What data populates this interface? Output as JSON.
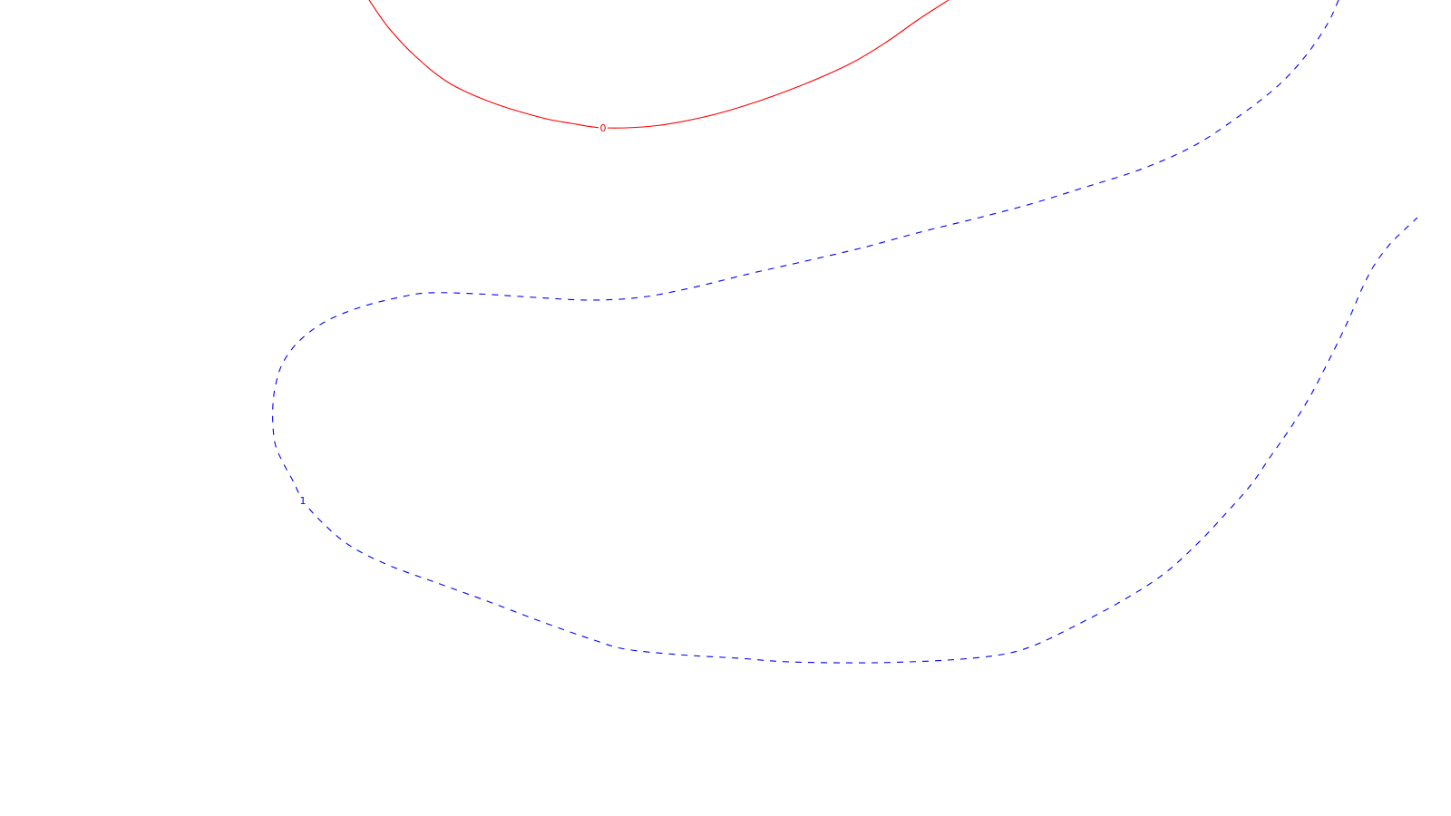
{
  "chart_data": {
    "type": "contour",
    "title": "",
    "xlabel": "",
    "ylabel": "",
    "grid": false,
    "legend": "none",
    "background": "#ffffff",
    "contours": [
      {
        "level_label": "0",
        "color": "#ff0000",
        "style": "solid",
        "closed": false,
        "label_at_point": 7,
        "points": [
          [
            407,
            0
          ],
          [
            428,
            30
          ],
          [
            458,
            62
          ],
          [
            496,
            92
          ],
          [
            545,
            114
          ],
          [
            598,
            130
          ],
          [
            630,
            136
          ],
          [
            665,
            141
          ],
          [
            720,
            139
          ],
          [
            772,
            130
          ],
          [
            823,
            116
          ],
          [
            884,
            94
          ],
          [
            938,
            70
          ],
          [
            978,
            46
          ],
          [
            1012,
            22
          ],
          [
            1046,
            0
          ]
        ]
      },
      {
        "level_label": "1",
        "color": "#0000ff",
        "style": "dashed",
        "closed": false,
        "label_at_point": 31,
        "points": [
          [
            1476,
            0
          ],
          [
            1464,
            26
          ],
          [
            1441,
            60
          ],
          [
            1412,
            92
          ],
          [
            1372,
            124
          ],
          [
            1318,
            160
          ],
          [
            1260,
            186
          ],
          [
            1198,
            206
          ],
          [
            1140,
            224
          ],
          [
            1080,
            240
          ],
          [
            1015,
            256
          ],
          [
            948,
            274
          ],
          [
            888,
            288
          ],
          [
            826,
            302
          ],
          [
            760,
            318
          ],
          [
            706,
            328
          ],
          [
            650,
            331
          ],
          [
            590,
            328
          ],
          [
            525,
            324
          ],
          [
            472,
            323
          ],
          [
            440,
            328
          ],
          [
            400,
            338
          ],
          [
            360,
            354
          ],
          [
            330,
            376
          ],
          [
            312,
            400
          ],
          [
            304,
            424
          ],
          [
            301,
            446
          ],
          [
            301,
            470
          ],
          [
            304,
            492
          ],
          [
            313,
            512
          ],
          [
            324,
            532
          ],
          [
            334,
            552
          ],
          [
            355,
            576
          ],
          [
            386,
            602
          ],
          [
            430,
            624
          ],
          [
            485,
            644
          ],
          [
            540,
            664
          ],
          [
            598,
            686
          ],
          [
            655,
            706
          ],
          [
            690,
            716
          ],
          [
            748,
            722
          ],
          [
            815,
            726
          ],
          [
            870,
            730
          ],
          [
            960,
            731
          ],
          [
            1045,
            728
          ],
          [
            1104,
            722
          ],
          [
            1140,
            712
          ],
          [
            1182,
            692
          ],
          [
            1235,
            664
          ],
          [
            1282,
            634
          ],
          [
            1320,
            600
          ],
          [
            1352,
            566
          ],
          [
            1380,
            534
          ],
          [
            1402,
            502
          ],
          [
            1423,
            472
          ],
          [
            1443,
            440
          ],
          [
            1460,
            408
          ],
          [
            1476,
            376
          ],
          [
            1490,
            346
          ],
          [
            1502,
            318
          ],
          [
            1515,
            293
          ],
          [
            1532,
            270
          ],
          [
            1548,
            254
          ],
          [
            1563,
            240
          ]
        ]
      }
    ]
  }
}
